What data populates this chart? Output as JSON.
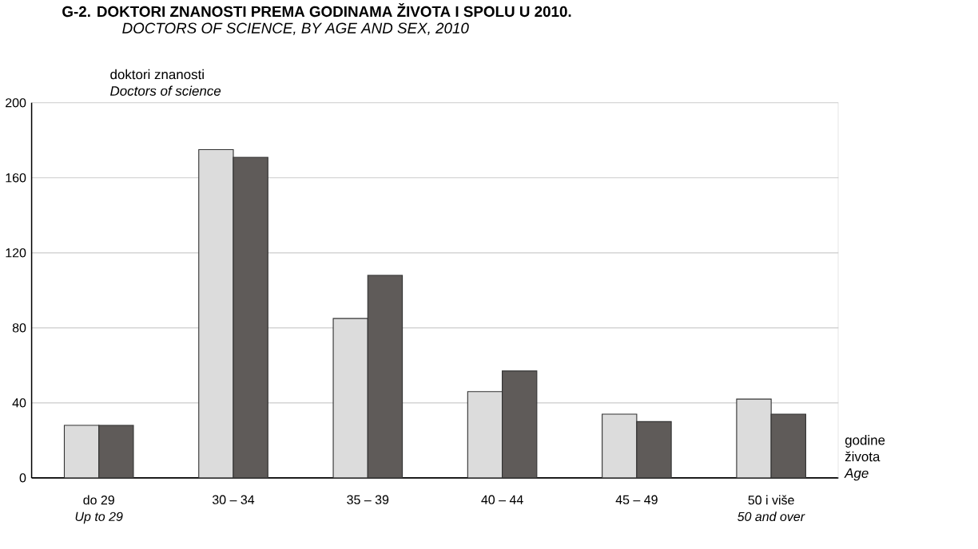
{
  "chart_data": {
    "type": "bar",
    "title": "G-2. DOKTORI ZNANOSTI PREMA GODINAMA ŽIVOTA I SPOLU U 2010.",
    "subtitle": "DOCTORS OF SCIENCE, BY AGE AND SEX, 2010",
    "ylabel": "doktori znanosti\n*Doctors of science*",
    "xlabel": "godine\nživota\n*Age*",
    "categories": [
      "do 29\n*Up to 29*",
      "30 – 34",
      "35 – 39",
      "40 – 44",
      "45 – 49",
      "50 i više\n*50 and over*"
    ],
    "series": [
      {
        "color": "#dcdcdc",
        "values": [
          28,
          175,
          85,
          46,
          34,
          42
        ]
      },
      {
        "color": "#5f5b59",
        "values": [
          28,
          171,
          108,
          57,
          30,
          34
        ]
      }
    ],
    "ylim": [
      0,
      200
    ],
    "yticks": [
      0,
      40,
      80,
      120,
      160,
      200
    ],
    "grid": "y"
  }
}
